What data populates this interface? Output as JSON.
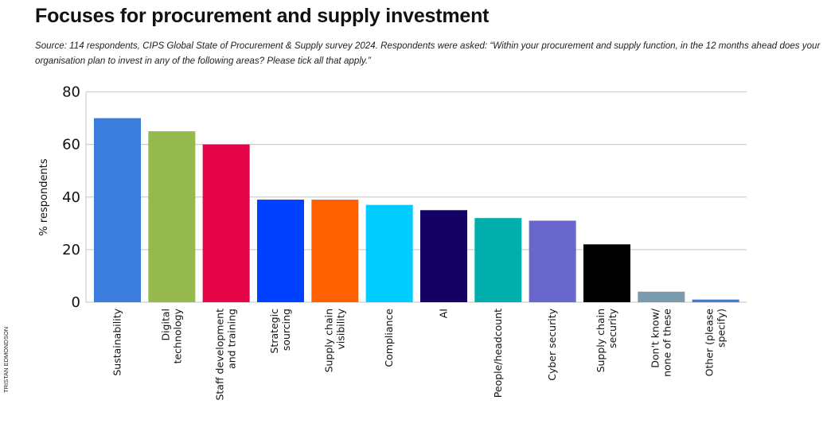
{
  "chart_data": {
    "type": "bar",
    "title": "Focuses for procurement and supply investment",
    "subtitle": "Source: 114 respondents, CIPS Global State of Procurement & Supply survey 2024. Respondents were asked: “Within your procurement and supply function, in the 12 months ahead does your organisation plan to invest in any of the following areas? Please tick all that apply.”",
    "credit": "TRISTAN EDMONDSON",
    "xlabel": "",
    "ylabel": "% respondents",
    "ylim": [
      0,
      80
    ],
    "yticks": [
      0,
      20,
      40,
      60,
      80
    ],
    "grid": true,
    "categories": [
      [
        "Sustainability"
      ],
      [
        "Digital",
        "technology"
      ],
      [
        "Staff development",
        "and training"
      ],
      [
        "Strategic",
        "sourcing"
      ],
      [
        "Supply chain",
        "visibility"
      ],
      [
        "Compliance"
      ],
      [
        "AI"
      ],
      [
        "People/headcount"
      ],
      [
        "Cyber security"
      ],
      [
        "Supply chain",
        "security"
      ],
      [
        "Don't know/",
        "none of these"
      ],
      [
        "Other (please",
        "specify)"
      ]
    ],
    "values": [
      70,
      65,
      60,
      39,
      39,
      37,
      35,
      32,
      31,
      22,
      4,
      1
    ],
    "colors": [
      "#3b7ddd",
      "#95b94c",
      "#e60548",
      "#0041ff",
      "#ff6000",
      "#00ccff",
      "#150064",
      "#00afab",
      "#6967cc",
      "#000000",
      "#7a9aad",
      "#3b7ddd"
    ]
  }
}
